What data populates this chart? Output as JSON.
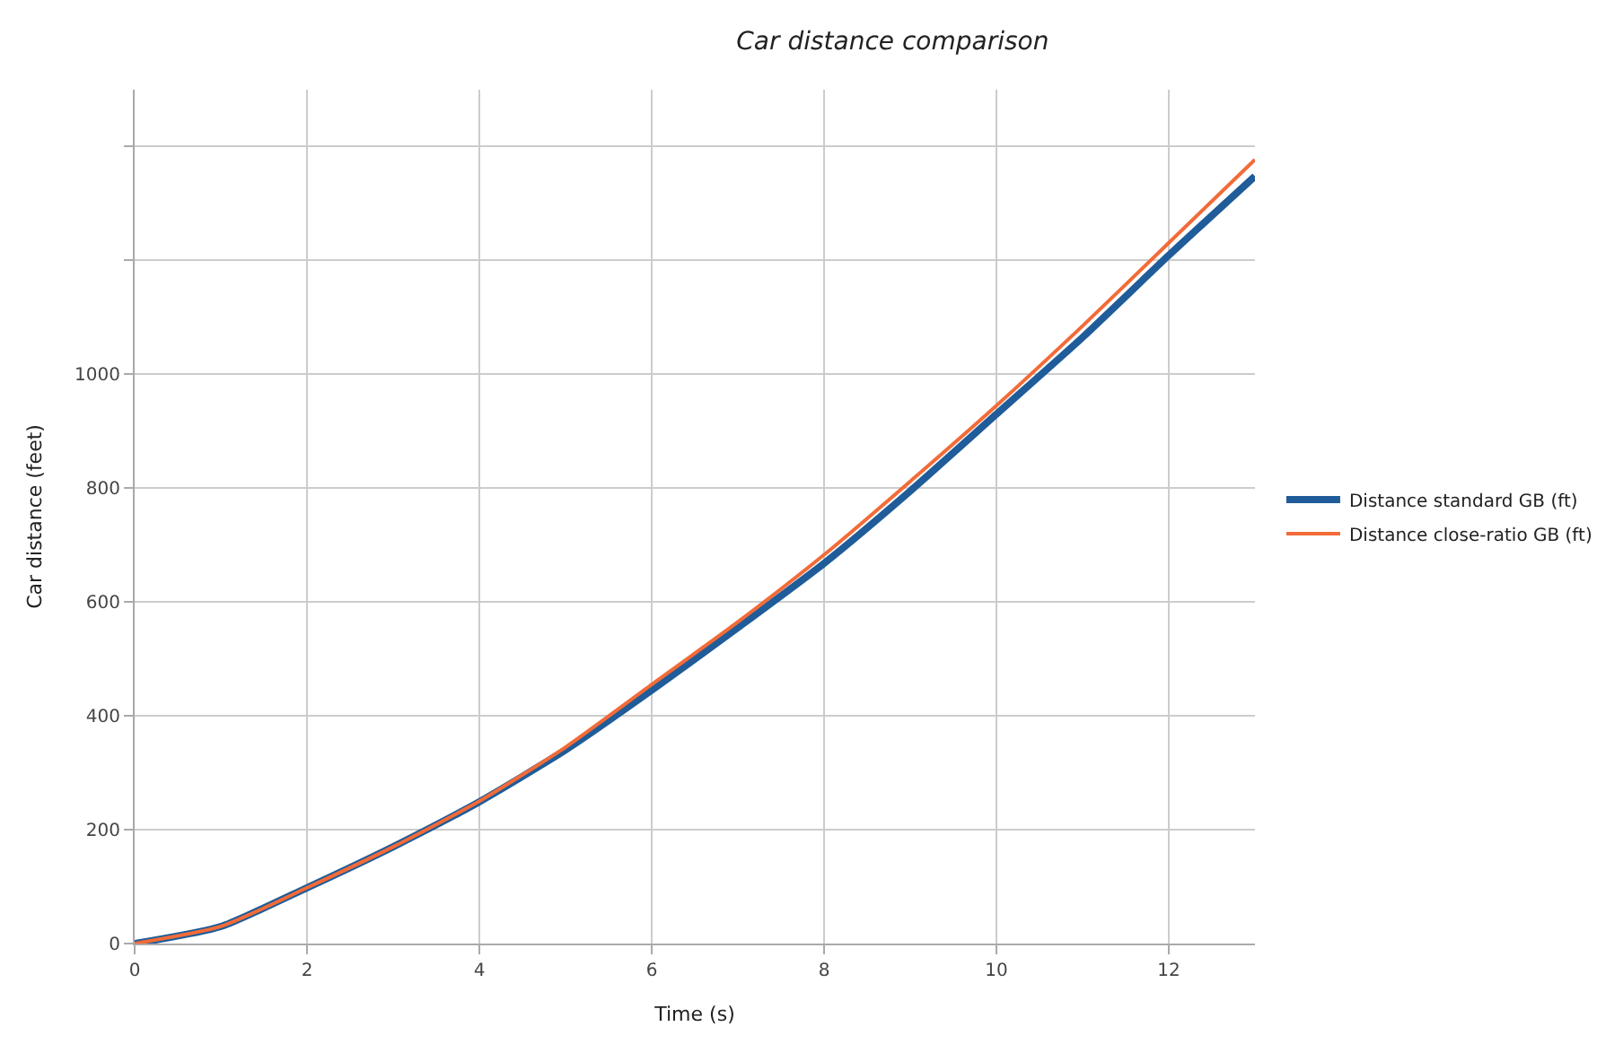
{
  "chart_data": {
    "type": "line",
    "title": "Car distance comparison",
    "xlabel": "Time (s)",
    "ylabel": "Car distance (feet)",
    "x": [
      0,
      1,
      2,
      3,
      4,
      5,
      6,
      7,
      8,
      9,
      10,
      11,
      12,
      13
    ],
    "series": [
      {
        "name": "Distance standard GB (ft)",
        "color": "#1f5c99",
        "values": [
          0,
          30,
          98,
          170,
          249,
          340,
          445,
          555,
          668,
          795,
          930,
          1065,
          1209,
          1348
        ]
      },
      {
        "name": "Distance close-ratio GB (ft)",
        "color": "#f26b38",
        "values": [
          0,
          30,
          98,
          170,
          250,
          345,
          455,
          565,
          683,
          812,
          945,
          1085,
          1231,
          1377
        ]
      }
    ],
    "xlim": [
      0,
      13
    ],
    "xticks": [
      0,
      2,
      4,
      6,
      8,
      10,
      12
    ],
    "ylim": [
      0,
      1500
    ],
    "yticks": [
      0,
      200,
      400,
      600,
      800,
      1000,
      {
        "value": 1200,
        "label": null
      },
      {
        "value": 1400,
        "label": null
      }
    ],
    "grid": true,
    "legend": "right",
    "marker": "none",
    "line_style": "solid"
  }
}
